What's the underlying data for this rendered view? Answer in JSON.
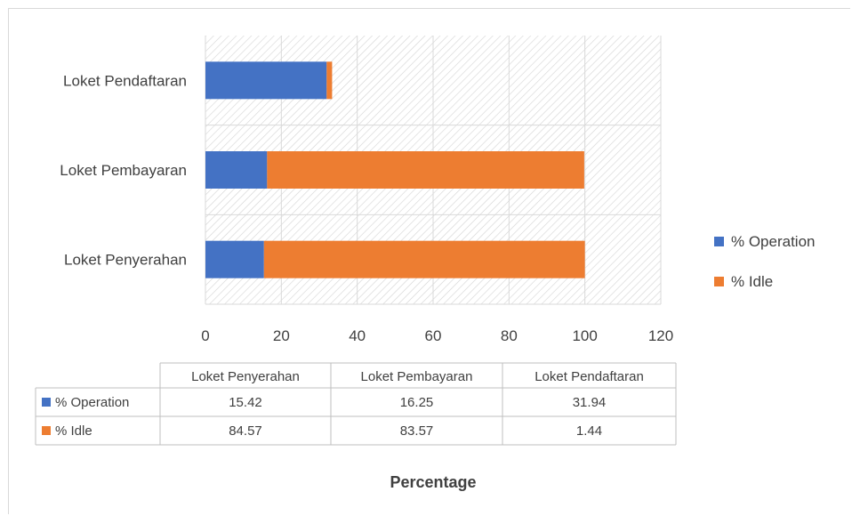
{
  "chart_data": {
    "type": "bar",
    "orientation": "horizontal",
    "stacked": true,
    "title": "",
    "xlabel": "Percentage",
    "ylabel": "",
    "xlim": [
      0,
      120
    ],
    "xticks": [
      0,
      20,
      40,
      60,
      80,
      100,
      120
    ],
    "grid": true,
    "legend_position": "right",
    "categories": [
      "Loket Penyerahan",
      "Loket Pembayaran",
      "Loket Pendaftaran"
    ],
    "series": [
      {
        "name": "% Operation",
        "color": "#4472c4",
        "values": [
          15.42,
          16.25,
          31.94
        ],
        "display": [
          "15.42",
          "16.25",
          "31.94"
        ]
      },
      {
        "name": "% Idle",
        "color": "#ed7d31",
        "values": [
          84.57,
          83.57,
          1.44
        ],
        "display": [
          "84.57",
          "83.57",
          "1.44"
        ]
      }
    ],
    "data_table": true
  }
}
